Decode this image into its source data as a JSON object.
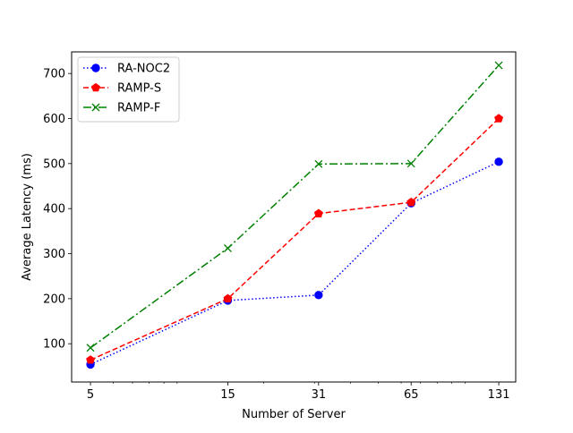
{
  "chart_data": {
    "type": "line",
    "xscale": "log",
    "xlabel": "Number of Server",
    "ylabel": "Average Latency (ms)",
    "xlim": [
      4.3,
      150
    ],
    "ylim": [
      15,
      748
    ],
    "xticks": [
      5,
      15,
      31,
      65,
      131
    ],
    "yticks": [
      100,
      200,
      300,
      400,
      500,
      600,
      700
    ],
    "grid": false,
    "legend_position": "top-left",
    "series": [
      {
        "name": "RA-NOC2",
        "x": [
          5,
          15,
          31,
          65,
          131
        ],
        "values": [
          54,
          196,
          208,
          412,
          504
        ],
        "color": "#0000ff",
        "line_style": "dotted",
        "marker": "circle"
      },
      {
        "name": "RAMP-S",
        "x": [
          5,
          15,
          31,
          65,
          131
        ],
        "values": [
          64,
          200,
          389,
          414,
          600
        ],
        "color": "#ff0000",
        "line_style": "dashed",
        "marker": "pentagon"
      },
      {
        "name": "RAMP-F",
        "x": [
          5,
          15,
          31,
          65,
          131
        ],
        "values": [
          91,
          312,
          499,
          500,
          718
        ],
        "color": "#008000",
        "line_style": "dash-dot",
        "marker": "x"
      }
    ]
  }
}
